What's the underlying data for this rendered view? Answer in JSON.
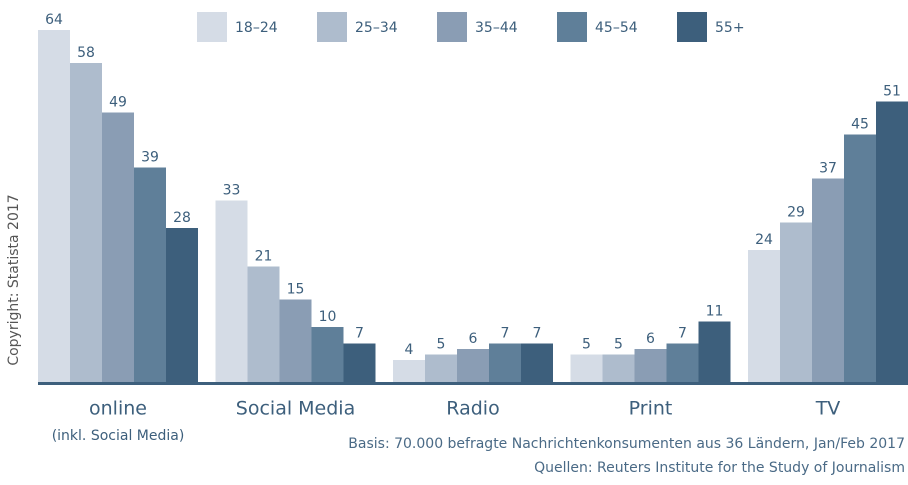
{
  "chart_data": {
    "type": "bar",
    "categories": [
      "online",
      "Social Media",
      "Radio",
      "Print",
      "TV"
    ],
    "category_note": "(inkl. Social Media)",
    "series": [
      {
        "name": "18–24",
        "color": "#d5dce6",
        "values": [
          64,
          33,
          4,
          5,
          24
        ]
      },
      {
        "name": "25–34",
        "color": "#aebccd",
        "values": [
          58,
          21,
          5,
          5,
          29
        ]
      },
      {
        "name": "35–44",
        "color": "#8a9db4",
        "values": [
          49,
          15,
          6,
          6,
          37
        ]
      },
      {
        "name": "45–54",
        "color": "#5f7f99",
        "values": [
          39,
          10,
          7,
          7,
          45
        ]
      },
      {
        "name": "55+",
        "color": "#3d5f7c",
        "values": [
          28,
          7,
          7,
          11,
          51
        ]
      }
    ],
    "notes": [
      "Basis: 70.000 befragte Nachrichtenkonsumenten aus 36 Ländern, Jan/Feb 2017",
      "Quellen: Reuters Institute for the Study of Journalism"
    ],
    "copyright": "Copyright: Statista 2017"
  }
}
